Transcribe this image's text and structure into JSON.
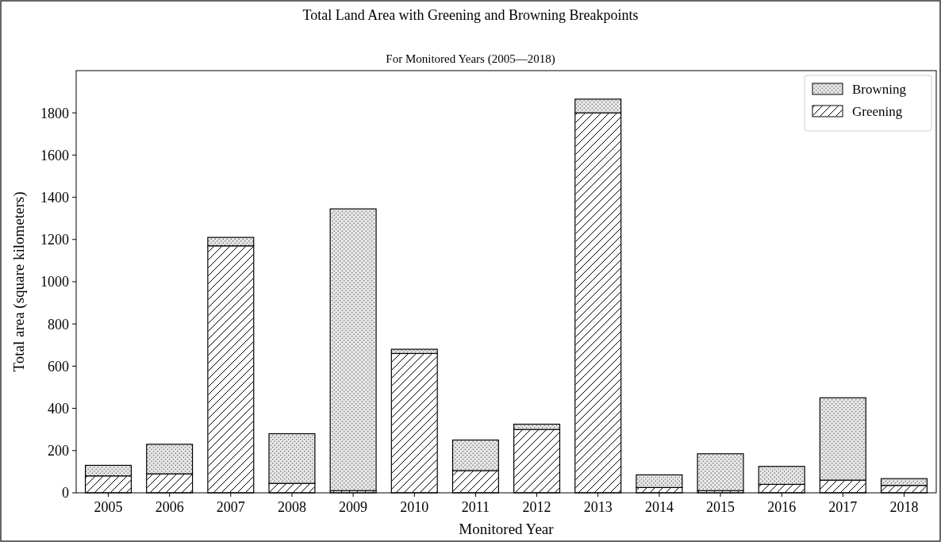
{
  "chart_data": {
    "type": "bar",
    "title": "Total Land Area with Greening and Browning Breakpoints",
    "subtitle": "For Monitored Years (2005—2018)",
    "xlabel": "Monitored Year",
    "ylabel": "Total area (square kilometers)",
    "categories": [
      "2005",
      "2006",
      "2007",
      "2008",
      "2009",
      "2010",
      "2011",
      "2012",
      "2013",
      "2014",
      "2015",
      "2016",
      "2017",
      "2018"
    ],
    "series": [
      {
        "name": "Greening",
        "color": "#ffffff",
        "values": [
          80,
          90,
          1170,
          45,
          10,
          660,
          105,
          300,
          1800,
          25,
          10,
          40,
          60,
          35
        ]
      },
      {
        "name": "Browning",
        "color": "#e6e6e6",
        "values": [
          50,
          140,
          40,
          235,
          1335,
          20,
          145,
          25,
          65,
          60,
          175,
          85,
          390,
          32
        ]
      }
    ],
    "stacked": true,
    "ylim": [
      0,
      2000
    ],
    "yticks": [
      0,
      200,
      400,
      600,
      800,
      1000,
      1200,
      1400,
      1600,
      1800
    ],
    "grid": false,
    "legend": "top right"
  }
}
